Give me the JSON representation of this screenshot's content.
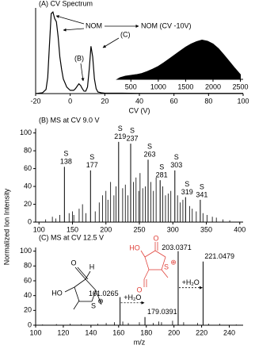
{
  "chart_data": [
    {
      "type": "line",
      "title": "(A) CV Spectrum",
      "x_label": "CV (V)",
      "x": [
        -20,
        -16,
        -14,
        -13,
        -12,
        -11,
        -10,
        -9,
        -8,
        -7,
        -6,
        -5,
        -4,
        -2,
        0,
        2,
        3,
        4,
        5,
        6,
        7,
        8,
        9,
        10,
        11,
        12,
        13,
        14,
        15,
        16,
        18,
        20,
        25,
        30,
        40,
        60,
        80,
        100
      ],
      "values": [
        0,
        1,
        5,
        20,
        60,
        98,
        100,
        92,
        88,
        70,
        45,
        30,
        18,
        8,
        4,
        4,
        6,
        9,
        12,
        10,
        6,
        3,
        3,
        8,
        30,
        58,
        45,
        18,
        6,
        2,
        1,
        0.5,
        0.5,
        0.5,
        0.3,
        0.3,
        0.3,
        0.3
      ],
      "color": "#000000",
      "xlim": [
        -20,
        100
      ],
      "ylim": [
        0,
        105
      ],
      "xticks": [
        -20,
        0,
        20,
        40,
        60,
        80,
        100
      ],
      "annotations": [
        "NOM",
        "NOM (CV -10V)",
        "(B)",
        "(C)"
      ],
      "inset": {
        "type": "area",
        "x": [
          250,
          300,
          400,
          500,
          600,
          700,
          800,
          900,
          1000,
          1100,
          1200,
          1300,
          1400,
          1500,
          1600,
          1700,
          1800,
          1900,
          2000,
          2100,
          2200,
          2300,
          2400,
          2500
        ],
        "values": [
          0,
          4,
          8,
          10,
          12,
          15,
          20,
          26,
          33,
          42,
          52,
          62,
          72,
          82,
          90,
          96,
          100,
          97,
          90,
          78,
          62,
          45,
          28,
          12
        ],
        "color": "#000000",
        "xlim": [
          250,
          2550
        ],
        "ylim": [
          0,
          105
        ],
        "xticks": [
          500,
          1000,
          1500,
          2000,
          2500
        ]
      }
    },
    {
      "type": "stem",
      "title": "(B) MS at CV 9.0 V",
      "y_label": "Normalized Ion Intensity",
      "x": [
        110,
        120,
        125,
        131,
        145,
        150,
        152,
        160,
        165,
        170,
        184,
        190,
        195,
        200,
        203,
        207,
        212,
        215,
        225,
        229,
        233,
        241,
        245,
        249,
        251,
        255,
        259,
        267,
        271,
        275,
        285,
        289,
        293,
        297,
        307,
        311,
        315,
        325,
        329,
        335,
        345,
        351,
        359,
        365,
        375,
        385
      ],
      "values": [
        3,
        6,
        4,
        8,
        10,
        12,
        8,
        15,
        20,
        10,
        12,
        22,
        30,
        35,
        25,
        45,
        30,
        40,
        38,
        42,
        30,
        45,
        50,
        35,
        55,
        38,
        40,
        45,
        35,
        50,
        40,
        30,
        32,
        35,
        30,
        22,
        25,
        18,
        15,
        12,
        10,
        8,
        6,
        5,
        3,
        2
      ],
      "labeled_peaks": [
        {
          "tag": "S",
          "mz": 138,
          "value": 62
        },
        {
          "tag": "S",
          "mz": 177,
          "value": 58
        },
        {
          "tag": "S",
          "mz": 219,
          "value": 90
        },
        {
          "tag": "S",
          "mz": 237,
          "value": 88
        },
        {
          "tag": "S",
          "mz": 263,
          "value": 70
        },
        {
          "tag": "S",
          "mz": 281,
          "value": 47
        },
        {
          "tag": "S",
          "mz": 303,
          "value": 58
        },
        {
          "tag": "S",
          "mz": 319,
          "value": 28
        },
        {
          "tag": "S",
          "mz": 341,
          "value": 25
        }
      ],
      "color": "#000000",
      "xlim": [
        95,
        405
      ],
      "ylim": [
        0,
        105
      ],
      "xticks": [
        100,
        150,
        200,
        250,
        300,
        350,
        400
      ],
      "yticks": [
        0,
        20,
        40,
        60,
        80,
        100
      ]
    },
    {
      "type": "stem",
      "title": "(C) MS at CV 12.5 V",
      "x_label": "m/z",
      "x": [
        105,
        115,
        125,
        133,
        145,
        151,
        157,
        163,
        167,
        175,
        185,
        189,
        191,
        199,
        207,
        217,
        225,
        233,
        245
      ],
      "values": [
        1,
        1.5,
        2,
        1.5,
        2,
        3,
        4,
        5,
        3,
        4,
        3,
        5,
        4,
        6,
        4,
        3,
        2,
        2,
        1
      ],
      "labeled_peaks": [
        {
          "mz": 161.0265,
          "value": 38
        },
        {
          "mz": 179.0391,
          "value": 11
        },
        {
          "mz": 203.0371,
          "value": 100
        },
        {
          "mz": 221.0479,
          "value": 86
        }
      ],
      "annotations": [
        "+H₂O",
        "+H₂O"
      ],
      "structures": [
        {
          "color": "#000000",
          "labels": [
            "O",
            "HO",
            "H",
            "S",
            "⊕"
          ]
        },
        {
          "color": "#e0413a",
          "labels": [
            "HO",
            "O",
            "S",
            "⊕",
            "O"
          ]
        }
      ],
      "color": "#000000",
      "xlim": [
        100,
        250
      ],
      "ylim": [
        0,
        105
      ],
      "xticks": [
        100,
        120,
        140,
        160,
        180,
        200,
        220,
        240
      ],
      "yticks": [
        0,
        20,
        40,
        60,
        80,
        100
      ]
    }
  ]
}
